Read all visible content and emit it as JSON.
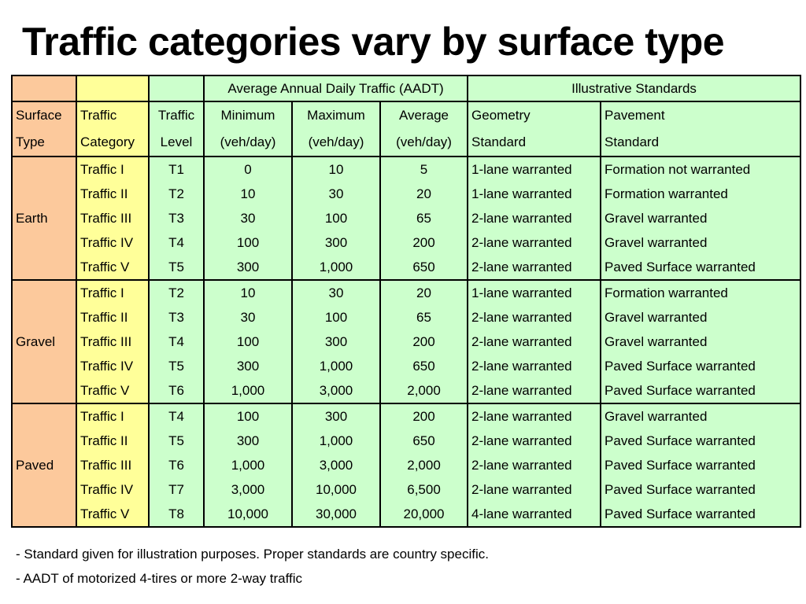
{
  "title": "Traffic categories vary by surface type",
  "colors": {
    "surface_column": "#fcc99c",
    "category_column": "#ffff99",
    "data_columns": "#ccffcc",
    "border": "#000000"
  },
  "table": {
    "group_headers": {
      "aadt": "Average Annual Daily Traffic (AADT)",
      "standards": "Illustrative Standards"
    },
    "col_headers": {
      "surface": [
        "Surface",
        "Type"
      ],
      "category": [
        "Traffic",
        "Category"
      ],
      "level": [
        "Traffic",
        "Level"
      ],
      "min": [
        "Minimum",
        "(veh/day)"
      ],
      "max": [
        "Maximum",
        "(veh/day)"
      ],
      "avg": [
        "Average",
        "(veh/day)"
      ],
      "geometry": [
        "Geometry",
        "Standard"
      ],
      "pavement": [
        "Pavement",
        "Standard"
      ]
    },
    "groups": [
      {
        "surface": "Earth",
        "rows": [
          {
            "category": "Traffic I",
            "level": "T1",
            "min": "0",
            "max": "10",
            "avg": "5",
            "geometry": "1-lane warranted",
            "pavement": "Formation not warranted"
          },
          {
            "category": "Traffic II",
            "level": "T2",
            "min": "10",
            "max": "30",
            "avg": "20",
            "geometry": "1-lane warranted",
            "pavement": "Formation warranted"
          },
          {
            "category": "Traffic III",
            "level": "T3",
            "min": "30",
            "max": "100",
            "avg": "65",
            "geometry": "2-lane warranted",
            "pavement": "Gravel warranted"
          },
          {
            "category": "Traffic IV",
            "level": "T4",
            "min": "100",
            "max": "300",
            "avg": "200",
            "geometry": "2-lane warranted",
            "pavement": "Gravel warranted"
          },
          {
            "category": "Traffic V",
            "level": "T5",
            "min": "300",
            "max": "1,000",
            "avg": "650",
            "geometry": "2-lane warranted",
            "pavement": "Paved Surface warranted"
          }
        ]
      },
      {
        "surface": "Gravel",
        "rows": [
          {
            "category": "Traffic I",
            "level": "T2",
            "min": "10",
            "max": "30",
            "avg": "20",
            "geometry": "1-lane warranted",
            "pavement": "Formation warranted"
          },
          {
            "category": "Traffic II",
            "level": "T3",
            "min": "30",
            "max": "100",
            "avg": "65",
            "geometry": "2-lane warranted",
            "pavement": "Gravel warranted"
          },
          {
            "category": "Traffic III",
            "level": "T4",
            "min": "100",
            "max": "300",
            "avg": "200",
            "geometry": "2-lane warranted",
            "pavement": "Gravel warranted"
          },
          {
            "category": "Traffic IV",
            "level": "T5",
            "min": "300",
            "max": "1,000",
            "avg": "650",
            "geometry": "2-lane warranted",
            "pavement": "Paved Surface warranted"
          },
          {
            "category": "Traffic V",
            "level": "T6",
            "min": "1,000",
            "max": "3,000",
            "avg": "2,000",
            "geometry": "2-lane warranted",
            "pavement": "Paved Surface warranted"
          }
        ]
      },
      {
        "surface": "Paved",
        "rows": [
          {
            "category": "Traffic I",
            "level": "T4",
            "min": "100",
            "max": "300",
            "avg": "200",
            "geometry": "2-lane warranted",
            "pavement": "Gravel warranted"
          },
          {
            "category": "Traffic II",
            "level": "T5",
            "min": "300",
            "max": "1,000",
            "avg": "650",
            "geometry": "2-lane warranted",
            "pavement": "Paved Surface warranted"
          },
          {
            "category": "Traffic III",
            "level": "T6",
            "min": "1,000",
            "max": "3,000",
            "avg": "2,000",
            "geometry": "2-lane warranted",
            "pavement": "Paved Surface warranted"
          },
          {
            "category": "Traffic IV",
            "level": "T7",
            "min": "3,000",
            "max": "10,000",
            "avg": "6,500",
            "geometry": "2-lane warranted",
            "pavement": "Paved Surface warranted"
          },
          {
            "category": "Traffic V",
            "level": "T8",
            "min": "10,000",
            "max": "30,000",
            "avg": "20,000",
            "geometry": "4-lane warranted",
            "pavement": "Paved Surface warranted"
          }
        ]
      }
    ]
  },
  "notes": [
    "- Standard given for illustration purposes. Proper standards are country specific.",
    "- AADT of motorized 4-tires or more 2-way traffic"
  ]
}
